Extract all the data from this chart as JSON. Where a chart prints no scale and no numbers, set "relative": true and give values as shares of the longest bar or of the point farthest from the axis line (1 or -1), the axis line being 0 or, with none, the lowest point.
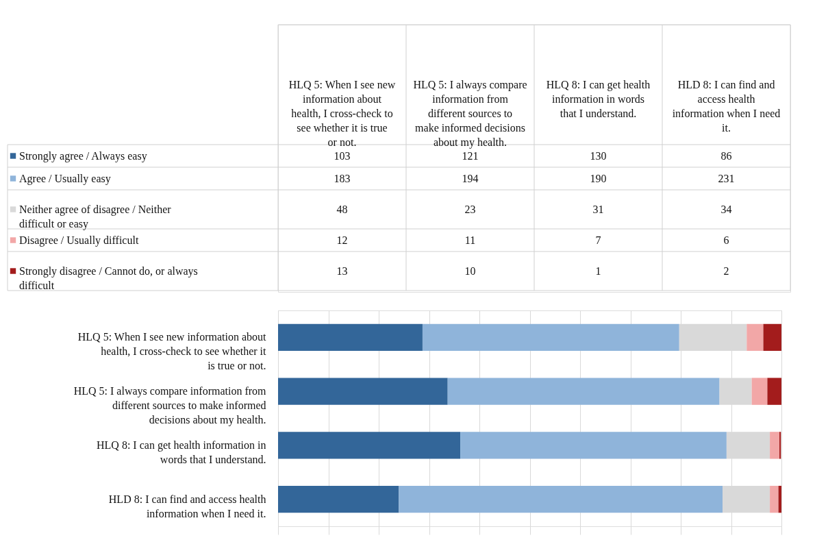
{
  "chart_data": [
    {
      "type": "other",
      "legend": "left",
      "data_labels": true,
      "categories": [
        "HLQ 5: When I see new information about health, I cross-check to see whether it is true or not.",
        "HLQ 5: I always compare information from different sources to make informed decisions about my health.",
        "HLQ 8: I can get health information in words that I understand.",
        "HLD 8: I can find and access health information when I need it."
      ],
      "series": [
        {
          "name": "Strongly agree / Always easy",
          "color": "#336699",
          "values": [
            103,
            121,
            130,
            86
          ]
        },
        {
          "name": "Agree / Usually easy",
          "color": "#8fb4da",
          "values": [
            183,
            194,
            190,
            231
          ]
        },
        {
          "name": "Neither agree of disagree / Neither difficult or easy",
          "color": "#d9d9d9",
          "values": [
            48,
            23,
            31,
            34
          ]
        },
        {
          "name": "Disagree / Usually difficult",
          "color": "#f2a7a7",
          "values": [
            12,
            11,
            7,
            6
          ]
        },
        {
          "name": "Strongly disagree / Cannot do, or always difficult",
          "color": "#a31c1c",
          "values": [
            13,
            10,
            1,
            2
          ]
        }
      ]
    },
    {
      "type": "bar",
      "orientation": "horizontal",
      "stacked": true,
      "relative": true,
      "grid": "x",
      "categories": [
        "HLQ 5: When I see new information about health, I cross-check to see whether it is true or not.",
        "HLQ 5: I always compare information from different sources to make informed decisions about my health.",
        "HLQ 8: I can get health information in words that I understand.",
        "HLD 8: I can find and access health information when I need it."
      ],
      "series": [
        {
          "color": "#336699",
          "values": [
            0.287,
            0.337,
            0.362,
            0.24
          ]
        },
        {
          "color": "#8fb4da",
          "values": [
            0.51,
            0.54,
            0.529,
            0.643
          ]
        },
        {
          "color": "#d9d9d9",
          "values": [
            0.134,
            0.064,
            0.086,
            0.094
          ]
        },
        {
          "color": "#f2a7a7",
          "values": [
            0.033,
            0.031,
            0.019,
            0.017
          ]
        },
        {
          "color": "#a31c1c",
          "values": [
            0.036,
            0.028,
            0.003,
            0.006
          ]
        }
      ]
    }
  ]
}
